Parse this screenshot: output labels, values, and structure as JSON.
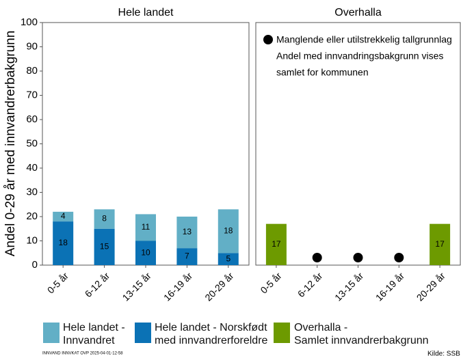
{
  "chart_data": [
    {
      "type": "bar",
      "title": "Hele landet",
      "y_label": "Andel 0-29 år med innvandrerbakgrunn",
      "categories": [
        "0-5 år",
        "6-12 år",
        "13-15 år",
        "16-19 år",
        "20-29 år"
      ],
      "series": [
        {
          "name": "Hele landet -\nInnvandret",
          "color": "#62afc6",
          "values": [
            4,
            8,
            11,
            13,
            18
          ]
        },
        {
          "name": "Hele landet - Norskfødt\nmed innvandrerforeldre",
          "color": "#0b72b5",
          "values": [
            18,
            15,
            10,
            7,
            5
          ]
        }
      ],
      "ylim": [
        0,
        100
      ],
      "yticks": [
        0,
        10,
        20,
        30,
        40,
        50,
        60,
        70,
        80,
        90,
        100
      ]
    },
    {
      "type": "bar",
      "title": "Overhalla",
      "categories": [
        "0-5 år",
        "6-12 år",
        "13-15 år",
        "16-19 år",
        "20-29 år"
      ],
      "series": [
        {
          "name": "Overhalla -\nSamlet innvandrerbakgrunn",
          "color": "#6d9a00",
          "values": [
            17,
            null,
            null,
            null,
            17
          ]
        }
      ],
      "ylim": [
        0,
        100
      ],
      "annotations": [
        "Manglende eller utilstrekkelig tallgrunnlag",
        "Andel med innvandringsbakgrunn vises",
        "samlet for kommunen"
      ]
    }
  ],
  "footer": {
    "code": "INNVAND INNVKAT OVP 2025-04-01-12-58",
    "source": "Kilde: SSB"
  }
}
